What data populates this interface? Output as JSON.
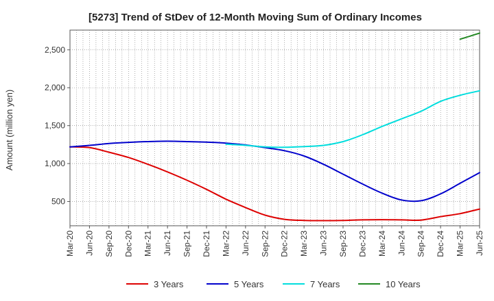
{
  "chart_data": {
    "type": "line",
    "title": "[5273]  Trend of StDev of 12-Month Moving Sum of Ordinary Incomes",
    "xlabel": "",
    "ylabel": "Amount (million yen)",
    "ylim": [
      180,
      2760
    ],
    "y_ticks": [
      500,
      1000,
      1500,
      2000,
      2500
    ],
    "y_tick_labels": [
      "500",
      "1,000",
      "1,500",
      "2,000",
      "2,500"
    ],
    "x_ticks": [
      "Mar-20",
      "Jun-20",
      "Sep-20",
      "Dec-20",
      "Mar-21",
      "Jun-21",
      "Sep-21",
      "Dec-21",
      "Mar-22",
      "Jun-22",
      "Sep-22",
      "Dec-22",
      "Mar-23",
      "Jun-23",
      "Sep-23",
      "Dec-23",
      "Mar-24",
      "Jun-24",
      "Sep-24",
      "Dec-24",
      "Mar-25",
      "Jun-25"
    ],
    "x_range_months": [
      0,
      63
    ],
    "grid": true,
    "legend_position": "bottom",
    "series": [
      {
        "name": "3 Years",
        "color": "#dd0000",
        "x": [
          0,
          3,
          6,
          9,
          12,
          15,
          18,
          21,
          24,
          27,
          30,
          33,
          36,
          39,
          42,
          45,
          48,
          51,
          54,
          57,
          60,
          63
        ],
        "values": [
          1220,
          1210,
          1150,
          1080,
          990,
          890,
          780,
          660,
          530,
          420,
          320,
          265,
          250,
          248,
          250,
          258,
          260,
          258,
          255,
          300,
          340,
          400
        ]
      },
      {
        "name": "5 Years",
        "color": "#0000cc",
        "x": [
          0,
          3,
          6,
          9,
          12,
          15,
          18,
          21,
          24,
          27,
          30,
          33,
          36,
          39,
          42,
          45,
          48,
          51,
          54,
          57,
          60,
          63
        ],
        "values": [
          1220,
          1240,
          1265,
          1280,
          1290,
          1295,
          1290,
          1282,
          1270,
          1245,
          1210,
          1170,
          1100,
          990,
          860,
          730,
          610,
          520,
          510,
          600,
          740,
          880
        ]
      },
      {
        "name": "7 Years",
        "color": "#00dddd",
        "x": [
          24,
          27,
          30,
          33,
          36,
          39,
          42,
          45,
          48,
          51,
          54,
          57,
          60,
          63
        ],
        "values": [
          1255,
          1240,
          1220,
          1215,
          1225,
          1240,
          1290,
          1380,
          1490,
          1590,
          1690,
          1820,
          1900,
          1960
        ]
      },
      {
        "name": "10 Years",
        "color": "#228822",
        "x": [
          60,
          61.5,
          63
        ],
        "values": [
          2640,
          2680,
          2720
        ]
      }
    ]
  }
}
